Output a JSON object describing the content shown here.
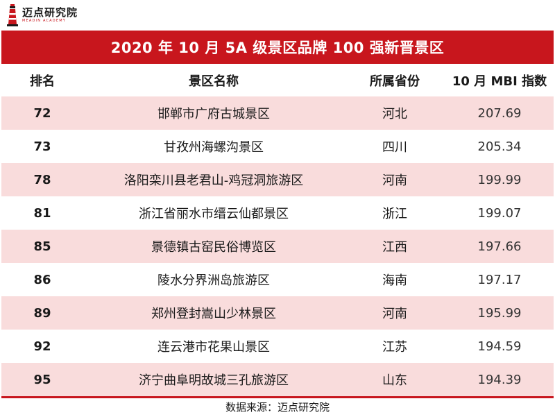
{
  "logo": {
    "name": "迈点研究院",
    "subtitle": "MEADIN ACADEMY"
  },
  "title": "2020 年 10 月 5A 级景区品牌 100 强新晋景区",
  "columns": {
    "rank": "排名",
    "name": "景区名称",
    "province": "所属省份",
    "mbi": "10 月 MBI 指数"
  },
  "rows": [
    {
      "rank": "72",
      "name": "邯郸市广府古城景区",
      "province": "河北",
      "mbi": "207.69"
    },
    {
      "rank": "73",
      "name": "甘孜州海螺沟景区",
      "province": "四川",
      "mbi": "205.34"
    },
    {
      "rank": "78",
      "name": "洛阳栾川县老君山-鸡冠洞旅游区",
      "province": "河南",
      "mbi": "199.99"
    },
    {
      "rank": "81",
      "name": "浙江省丽水市缙云仙都景区",
      "province": "浙江",
      "mbi": "199.07"
    },
    {
      "rank": "85",
      "name": "景德镇古窑民俗博览区",
      "province": "江西",
      "mbi": "197.66"
    },
    {
      "rank": "86",
      "name": "陵水分界洲岛旅游区",
      "province": "海南",
      "mbi": "197.17"
    },
    {
      "rank": "89",
      "name": "郑州登封嵩山少林景区",
      "province": "河南",
      "mbi": "195.99"
    },
    {
      "rank": "92",
      "name": "连云港市花果山景区",
      "province": "江苏",
      "mbi": "194.59"
    },
    {
      "rank": "95",
      "name": "济宁曲阜明故城三孔旅游区",
      "province": "山东",
      "mbi": "194.39"
    }
  ],
  "source": "数据来源：迈点研究院",
  "colors": {
    "accent": "#c8161d",
    "row_shade": "#f9dcdc"
  }
}
